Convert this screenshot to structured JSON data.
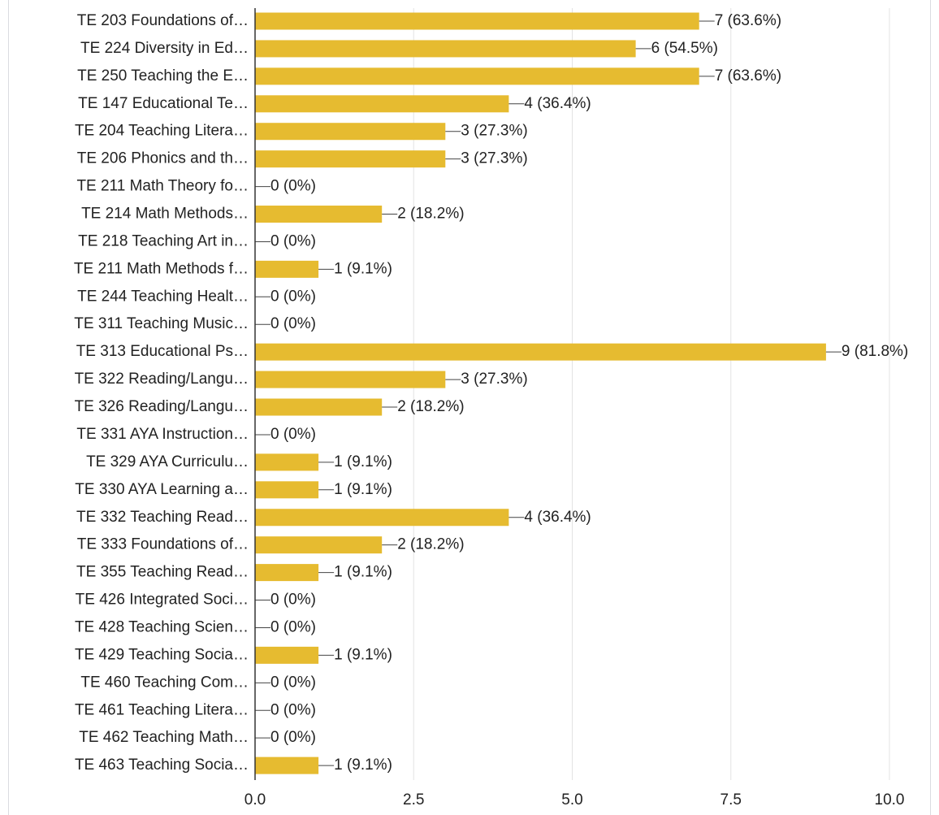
{
  "chart_data": {
    "type": "bar",
    "orientation": "horizontal",
    "color": "#e6bb30",
    "categories": [
      "TE 203 Foundations of…",
      "TE 224 Diversity in Ed…",
      "TE 250 Teaching the E…",
      "TE 147 Educational Te…",
      "TE 204 Teaching Litera…",
      "TE 206 Phonics and th…",
      "TE 211 Math Theory fo…",
      "TE 214 Math Methods…",
      "TE 218 Teaching Art in…",
      "TE 211 Math Methods f…",
      "TE 244 Teaching Healt…",
      "TE 311 Teaching Music…",
      "TE 313 Educational Ps…",
      "TE 322 Reading/Langu…",
      "TE 326 Reading/Langu…",
      "TE 331 AYA Instruction…",
      "TE 329 AYA Curriculu…",
      "TE 330 AYA Learning a…",
      "TE 332 Teaching Read…",
      "TE 333 Foundations of…",
      "TE 355 Teaching Read…",
      "TE 426 Integrated Soci…",
      "TE 428 Teaching Scien…",
      "TE 429 Teaching Socia…",
      "TE 460 Teaching Com…",
      "TE 461 Teaching Litera…",
      "TE 462 Teaching Math…",
      "TE 463 Teaching Socia…"
    ],
    "values": [
      7,
      6,
      7,
      4,
      3,
      3,
      0,
      2,
      0,
      1,
      0,
      0,
      9,
      3,
      2,
      0,
      1,
      1,
      4,
      2,
      1,
      0,
      0,
      1,
      0,
      0,
      0,
      1
    ],
    "value_labels": [
      "7 (63.6%)",
      "6 (54.5%)",
      "7 (63.6%)",
      "4 (36.4%)",
      "3 (27.3%)",
      "3 (27.3%)",
      "0 (0%)",
      "2 (18.2%)",
      "0 (0%)",
      "1 (9.1%)",
      "0 (0%)",
      "0 (0%)",
      "9 (81.8%)",
      "3 (27.3%)",
      "2 (18.2%)",
      "0 (0%)",
      "1 (9.1%)",
      "1 (9.1%)",
      "4 (36.4%)",
      "2 (18.2%)",
      "1 (9.1%)",
      "0 (0%)",
      "0 (0%)",
      "1 (9.1%)",
      "0 (0%)",
      "0 (0%)",
      "0 (0%)",
      "1 (9.1%)"
    ],
    "xlim": [
      0,
      10
    ],
    "xticks": [
      {
        "value": 0,
        "label": "0.0"
      },
      2.5,
      {
        "value": 5,
        "label": "5.0"
      },
      7.5,
      {
        "value": 10,
        "label": "10.0"
      }
    ],
    "grid": true
  }
}
